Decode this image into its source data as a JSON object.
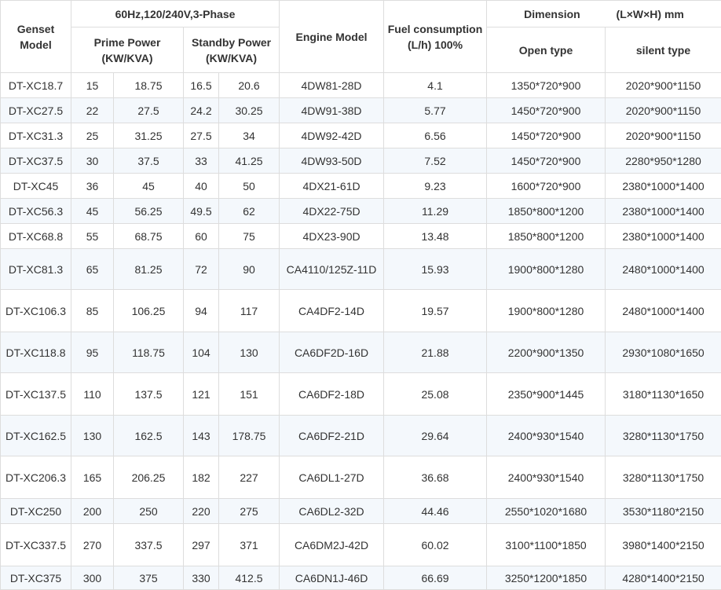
{
  "headers": {
    "model": "Genset Model",
    "spec": "60Hz,120/240V,3-Phase",
    "prime": "Prime Power (KW/KVA)",
    "standby": "Standby Power (KW/KVA)",
    "engine": "Engine Model",
    "fuel": "Fuel consumption (L/h) 100%",
    "dimension": "Dimension",
    "dimension_unit": "(L×W×H) mm",
    "open": "Open type",
    "silent": "silent type"
  },
  "rows": [
    {
      "model": "DT-XC18.7",
      "prime_kw": "15",
      "prime_kva": "18.75",
      "standby_kw": "16.5",
      "standby_kva": "20.6",
      "engine": "4DW81-28D",
      "fuel": "4.1",
      "open": "1350*720*900",
      "silent": "2020*900*1150"
    },
    {
      "model": "DT-XC27.5",
      "prime_kw": "22",
      "prime_kva": "27.5",
      "standby_kw": "24.2",
      "standby_kva": "30.25",
      "engine": "4DW91-38D",
      "fuel": "5.77",
      "open": "1450*720*900",
      "silent": "2020*900*1150"
    },
    {
      "model": "DT-XC31.3",
      "prime_kw": "25",
      "prime_kva": "31.25",
      "standby_kw": "27.5",
      "standby_kva": "34",
      "engine": "4DW92-42D",
      "fuel": "6.56",
      "open": "1450*720*900",
      "silent": "2020*900*1150"
    },
    {
      "model": "DT-XC37.5",
      "prime_kw": "30",
      "prime_kva": "37.5",
      "standby_kw": "33",
      "standby_kva": "41.25",
      "engine": "4DW93-50D",
      "fuel": "7.52",
      "open": "1450*720*900",
      "silent": "2280*950*1280"
    },
    {
      "model": "DT-XC45",
      "prime_kw": "36",
      "prime_kva": "45",
      "standby_kw": "40",
      "standby_kva": "50",
      "engine": "4DX21-61D",
      "fuel": "9.23",
      "open": "1600*720*900",
      "silent": "2380*1000*1400"
    },
    {
      "model": "DT-XC56.3",
      "prime_kw": "45",
      "prime_kva": "56.25",
      "standby_kw": "49.5",
      "standby_kva": "62",
      "engine": "4DX22-75D",
      "fuel": "11.29",
      "open": "1850*800*1200",
      "silent": "2380*1000*1400"
    },
    {
      "model": "DT-XC68.8",
      "prime_kw": "55",
      "prime_kva": "68.75",
      "standby_kw": "60",
      "standby_kva": "75",
      "engine": "4DX23-90D",
      "fuel": "13.48",
      "open": "1850*800*1200",
      "silent": "2380*1000*1400"
    },
    {
      "model": "DT-XC81.3",
      "prime_kw": "65",
      "prime_kva": "81.25",
      "standby_kw": "72",
      "standby_kva": "90",
      "engine": "CA4110/125Z-11D",
      "fuel": "15.93",
      "open": "1900*800*1280",
      "silent": "2480*1000*1400"
    },
    {
      "model": "DT-XC106.3",
      "prime_kw": "85",
      "prime_kva": "106.25",
      "standby_kw": "94",
      "standby_kva": "117",
      "engine": "CA4DF2-14D",
      "fuel": "19.57",
      "open": "1900*800*1280",
      "silent": "2480*1000*1400"
    },
    {
      "model": "DT-XC118.8",
      "prime_kw": "95",
      "prime_kva": "118.75",
      "standby_kw": "104",
      "standby_kva": "130",
      "engine": "CA6DF2D-16D",
      "fuel": "21.88",
      "open": "2200*900*1350",
      "silent": "2930*1080*1650"
    },
    {
      "model": "DT-XC137.5",
      "prime_kw": "110",
      "prime_kva": "137.5",
      "standby_kw": "121",
      "standby_kva": "151",
      "engine": "CA6DF2-18D",
      "fuel": "25.08",
      "open": "2350*900*1445",
      "silent": "3180*1130*1650"
    },
    {
      "model": "DT-XC162.5",
      "prime_kw": "130",
      "prime_kva": "162.5",
      "standby_kw": "143",
      "standby_kva": "178.75",
      "engine": "CA6DF2-21D",
      "fuel": "29.64",
      "open": "2400*930*1540",
      "silent": "3280*1130*1750"
    },
    {
      "model": "DT-XC206.3",
      "prime_kw": "165",
      "prime_kva": "206.25",
      "standby_kw": "182",
      "standby_kva": "227",
      "engine": "CA6DL1-27D",
      "fuel": "36.68",
      "open": "2400*930*1540",
      "silent": "3280*1130*1750"
    },
    {
      "model": "DT-XC250",
      "prime_kw": "200",
      "prime_kva": "250",
      "standby_kw": "220",
      "standby_kva": "275",
      "engine": "CA6DL2-32D",
      "fuel": "44.46",
      "open": "2550*1020*1680",
      "silent": "3530*1180*2150"
    },
    {
      "model": "DT-XC337.5",
      "prime_kw": "270",
      "prime_kva": "337.5",
      "standby_kw": "297",
      "standby_kva": "371",
      "engine": "CA6DM2J-42D",
      "fuel": "60.02",
      "open": "3100*1100*1850",
      "silent": "3980*1400*2150"
    },
    {
      "model": "DT-XC375",
      "prime_kw": "300",
      "prime_kva": "375",
      "standby_kw": "330",
      "standby_kva": "412.5",
      "engine": "CA6DN1J-46D",
      "fuel": "66.69",
      "open": "3250*1200*1850",
      "silent": "4280*1400*2150"
    }
  ]
}
